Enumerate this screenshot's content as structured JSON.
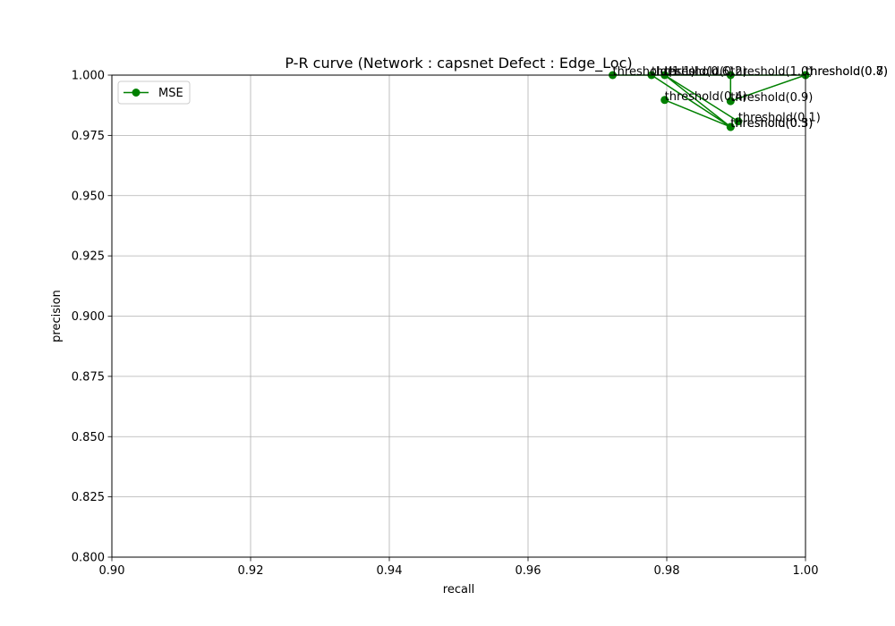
{
  "chart_data": {
    "type": "line",
    "title": "P-R curve (Network : capsnet Defect : Edge_Loc)",
    "xlabel": "recall",
    "ylabel": "precision",
    "xlim": [
      0.9,
      1.0
    ],
    "ylim": [
      0.8,
      1.0
    ],
    "xticks": [
      "0.90",
      "0.92",
      "0.94",
      "0.96",
      "0.98",
      "1.00"
    ],
    "yticks": [
      "0.800",
      "0.825",
      "0.850",
      "0.875",
      "0.900",
      "0.925",
      "0.950",
      "0.975",
      "1.000"
    ],
    "grid": true,
    "legend_position": "top-left",
    "colors": {
      "series": "#008000",
      "grid": "#b0b0b0"
    },
    "series": [
      {
        "name": "MSE",
        "points": [
          {
            "label": "threshold(0.1)",
            "x": 0.9903,
            "y": 0.9808
          },
          {
            "label": "threshold(0.2)",
            "x": 0.9797,
            "y": 1.0
          },
          {
            "label": "threshold(0.3)",
            "x": 0.9892,
            "y": 0.9785
          },
          {
            "label": "threshold(0.4)",
            "x": 0.9797,
            "y": 0.9897
          },
          {
            "label": "threshold(0.5)",
            "x": 0.9892,
            "y": 0.9785
          },
          {
            "label": "threshold(0.6)",
            "x": 0.9778,
            "y": 1.0
          },
          {
            "label": "threshold(0.7)",
            "x": 1.0,
            "y": 1.0
          },
          {
            "label": "threshold(0.8)",
            "x": 1.0,
            "y": 1.0
          },
          {
            "label": "threshold(0.9)",
            "x": 0.9892,
            "y": 0.9892
          },
          {
            "label": "threshold(1.0)",
            "x": 0.9892,
            "y": 1.0
          },
          {
            "label": "threshold(1.1)",
            "x": 0.9722,
            "y": 1.0
          }
        ]
      }
    ]
  }
}
